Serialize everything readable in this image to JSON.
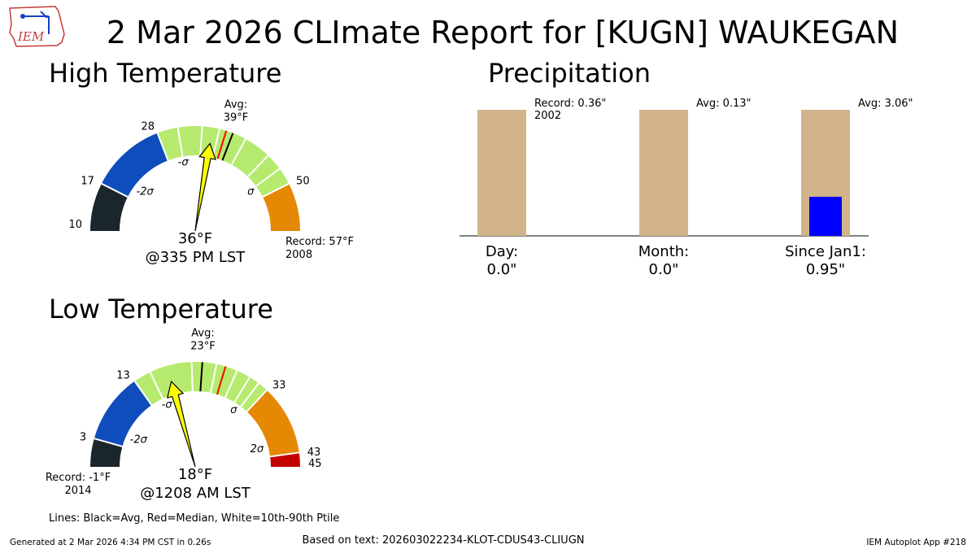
{
  "title": "2 Mar 2026 CLImate Report for [KUGN] WAUKEGAN",
  "logo": {
    "text": "IEM"
  },
  "colors": {
    "band_black": "#1b262c",
    "band_blue": "#0f4cbc",
    "band_green": "#b6ea6f",
    "band_orange": "#e58804",
    "band_red": "#c40000",
    "avg_line": "#000000",
    "median_line": "#ff0000",
    "ptile_line": "#ffffff",
    "needle": "#ffff00",
    "bar_tan": "#d2b48c",
    "bar_blue": "#0000ff"
  },
  "chart_data": [
    {
      "type": "gauge",
      "title": "High Temperature",
      "scale_min": 10,
      "scale_max": 57,
      "bands": [
        {
          "from": 10,
          "to": 17,
          "color": "band_black"
        },
        {
          "from": 17,
          "to": 28,
          "color": "band_blue"
        },
        {
          "from": 28,
          "to": 50,
          "color": "band_green"
        },
        {
          "from": 50,
          "to": 57,
          "color": "band_orange"
        }
      ],
      "tick_labels": [
        "10",
        "17",
        "28",
        "50"
      ],
      "sigma_labels": [
        {
          "text": "-2σ",
          "value": 17
        },
        {
          "text": "-σ",
          "value": 28
        },
        {
          "text": "σ",
          "value": 50
        }
      ],
      "avg": 39,
      "avg_label": "Avg:\n39°F",
      "median": 38,
      "percentile_lines": [
        31,
        34.5,
        37,
        41,
        45,
        47.5
      ],
      "needle_value": 36,
      "value_label": "36°F",
      "time_label": "@335 PM LST",
      "record_label": "Record: 57°F\n2008",
      "record_side": "right"
    },
    {
      "type": "gauge",
      "title": "Low Temperature",
      "scale_min": -1,
      "scale_max": 45,
      "bands": [
        {
          "from": -1,
          "to": 3,
          "color": "band_black"
        },
        {
          "from": 3,
          "to": 13,
          "color": "band_blue"
        },
        {
          "from": 13,
          "to": 33,
          "color": "band_green"
        },
        {
          "from": 33,
          "to": 43,
          "color": "band_orange"
        },
        {
          "from": 43,
          "to": 45,
          "color": "band_red"
        }
      ],
      "tick_labels": [
        "3",
        "13",
        "33",
        "43",
        "45"
      ],
      "sigma_labels": [
        {
          "text": "-2σ",
          "value": 3
        },
        {
          "text": "-σ",
          "value": 13
        },
        {
          "text": "σ",
          "value": 33
        },
        {
          "text": "2σ",
          "value": 43
        }
      ],
      "avg": 23,
      "avg_label": "Avg:\n23°F",
      "median": 26.3,
      "percentile_lines": [
        15.5,
        21.5,
        25,
        28,
        30,
        31.5
      ],
      "needle_value": 18,
      "value_label": "18°F",
      "time_label": "@1208 AM LST",
      "record_label": "Record: -1°F\n2014",
      "record_side": "left"
    },
    {
      "type": "bar",
      "title": "Precipitation",
      "categories": [
        "Day:",
        "Month:",
        "Since Jan1:"
      ],
      "observed": [
        0.0,
        0.0,
        0.95
      ],
      "observed_labels": [
        "0.0\"",
        "0.0\"",
        "0.95\""
      ],
      "reference_labels": [
        "Record: 0.36\"\n2002",
        "Avg: 0.13\"",
        "Avg: 3.06\""
      ],
      "reference_normalized": [
        1,
        1,
        1
      ],
      "observed_normalized": [
        0,
        0,
        0.31
      ]
    }
  ],
  "legend": "Lines: Black=Avg, Red=Median, White=10th-90th Ptile",
  "footer": {
    "left": "Generated at 2 Mar 2026 4:34 PM CST in 0.26s",
    "center": "Based on text: 202603022234-KLOT-CDUS43-CLIUGN",
    "right": "IEM Autoplot App #218"
  }
}
